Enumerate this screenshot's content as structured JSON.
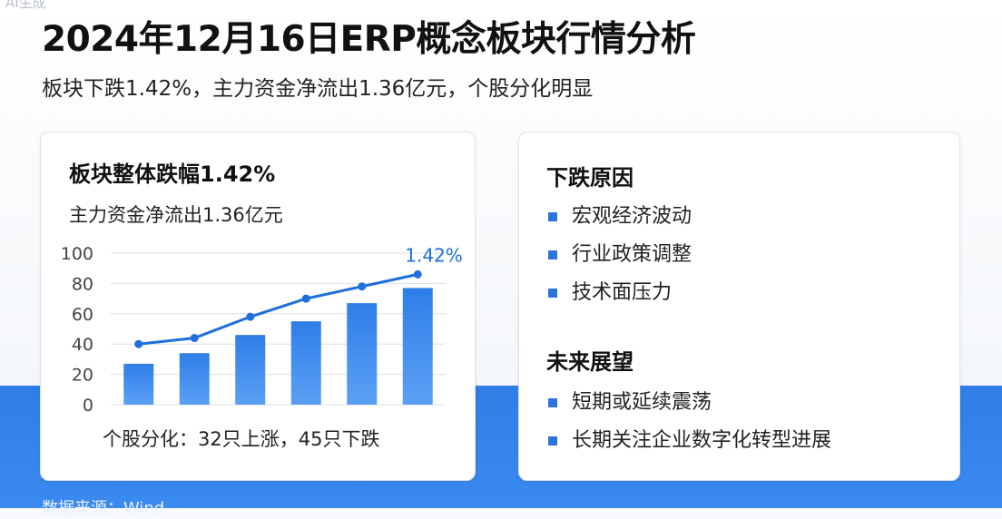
{
  "header": {
    "ai_tag": "AI生成",
    "title": "2024年12月16日ERP概念板块行情分析",
    "subtitle": "板块下跌1.42%，主力资金净流出1.36亿元，个股分化明显"
  },
  "left_card": {
    "title": "板块整体跌幅1.42%",
    "subtitle": "主力资金净流出1.36亿元",
    "note": "个股分化：32只上涨，45只下跌"
  },
  "chart_data": {
    "type": "bar",
    "categories": [
      "",
      "",
      "",
      "",
      "",
      ""
    ],
    "values": [
      27,
      34,
      46,
      55,
      67,
      77
    ],
    "line_values": [
      40,
      44,
      58,
      70,
      78,
      86
    ],
    "line_label": "1.42%",
    "ylim": [
      0,
      100
    ],
    "yticks": [
      "0",
      "20",
      "40",
      "60",
      "80",
      "100"
    ],
    "title": "",
    "xlabel": "",
    "ylabel": "",
    "grid": true,
    "colors": {
      "bar": "#2f7ee8",
      "line": "#1f6fdc",
      "label": "#1f6fdc"
    }
  },
  "right_card": {
    "reasons_title": "下跌原因",
    "reasons": [
      "宏观经济波动",
      "行业政策调整",
      "技术面压力"
    ],
    "outlook_title": "未来展望",
    "outlook": [
      "短期或延续震荡",
      "长期关注企业数字化转型进展"
    ]
  },
  "footer": {
    "text": "数据来源：Wind"
  }
}
